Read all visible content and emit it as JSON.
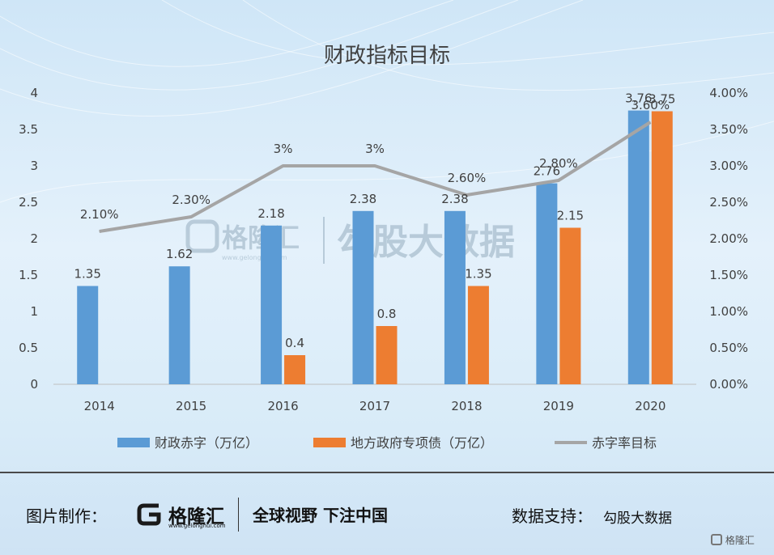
{
  "chart_data": {
    "type": "bar",
    "title": "财政指标目标",
    "categories": [
      "2014",
      "2015",
      "2016",
      "2017",
      "2018",
      "2019",
      "2020"
    ],
    "ylim": [
      0,
      4
    ],
    "y2lim": [
      0,
      0.04
    ],
    "y_ticks": [
      "0",
      "0.5",
      "1",
      "1.5",
      "2",
      "2.5",
      "3",
      "3.5",
      "4"
    ],
    "y2_ticks": [
      "0.00%",
      "0.50%",
      "1.00%",
      "1.50%",
      "2.00%",
      "2.50%",
      "3.00%",
      "3.50%",
      "4.00%"
    ],
    "series": [
      {
        "name": "财政赤字（万亿）",
        "type": "bar",
        "axis": "left",
        "color": "#5b9bd5",
        "values": [
          1.35,
          1.62,
          2.18,
          2.38,
          2.38,
          2.76,
          3.76
        ],
        "labels": [
          "1.35",
          "1.62",
          "2.18",
          "2.38",
          "2.38",
          "2.76",
          "3.76"
        ]
      },
      {
        "name": "地方政府专项债（万亿）",
        "type": "bar",
        "axis": "left",
        "color": "#ed7d31",
        "values": [
          null,
          null,
          0.4,
          0.8,
          1.35,
          2.15,
          3.75
        ],
        "labels": [
          "",
          "",
          "0.4",
          "0.8",
          "1.35",
          "2.15",
          "3.75"
        ]
      },
      {
        "name": "赤字率目标",
        "type": "line",
        "axis": "right",
        "color": "#a5a5a5",
        "values": [
          0.021,
          0.023,
          0.03,
          0.03,
          0.026,
          0.028,
          0.036
        ],
        "labels": [
          "2.10%",
          "2.30%",
          "3%",
          "3%",
          "2.60%",
          "2.80%",
          "3.60%"
        ]
      }
    ],
    "legend_position": "bottom",
    "grid": false
  },
  "watermark": {
    "brand": "格隆汇",
    "url": "www.gelonghui.com",
    "partner": "勾股大数据"
  },
  "footer": {
    "made_by_label": "图片制作：",
    "brand": "格隆汇",
    "brand_url": "www.gelonghui.com",
    "slogan": "全球视野 下注中国",
    "data_support_label": "数据支持：",
    "data_support_value": "勾股大数据",
    "corner_brand": "格隆汇"
  }
}
